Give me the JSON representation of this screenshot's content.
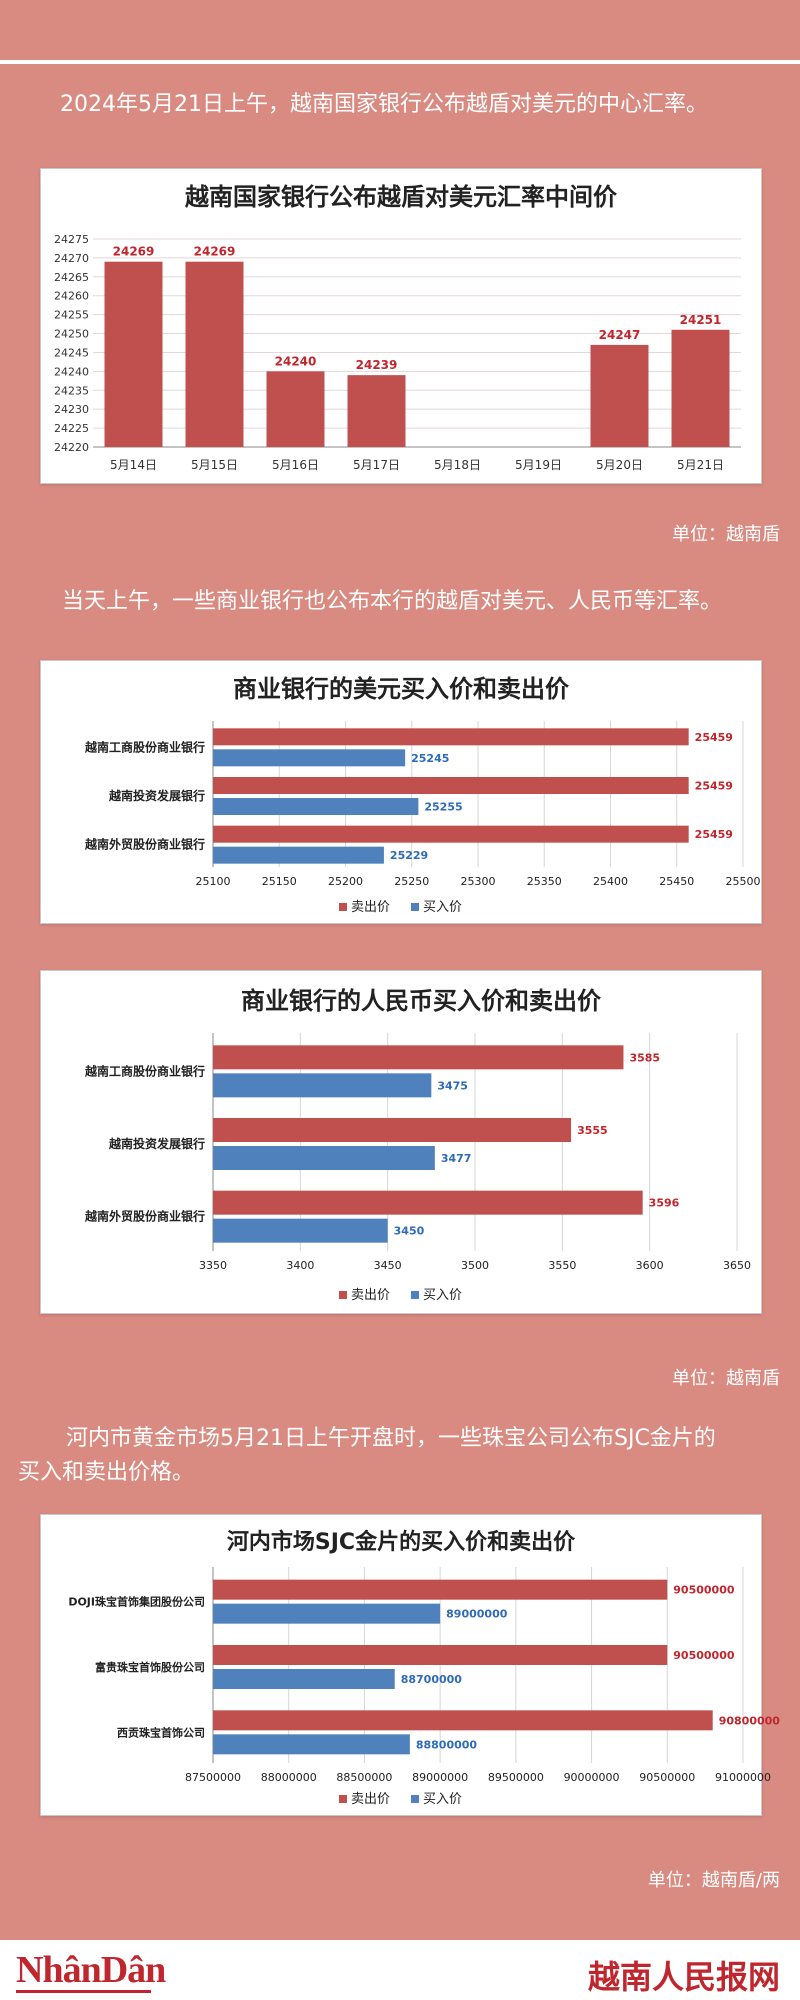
{
  "intro1": "2024年5月21日上午，越南国家银行公布越盾对美元的中心汇率。",
  "unit1": "单位：越南盾",
  "intro2": "当天上午，一些商业银行也公布本行的越盾对美元、人民币等汇率。",
  "unit2": "单位：越南盾",
  "intro3a": "河内市黄金市场5月21日上午开盘时，一些珠宝公司公布SJC金片的",
  "intro3b": "买入和卖出价格。",
  "unit3": "单位：越南盾/两",
  "footer": {
    "left_logo": "NhânDân",
    "right_logo": "越南人民报网"
  },
  "colors": {
    "sell": "#c0504d",
    "buy": "#4f81bd",
    "background": "#d98b82",
    "brand": "#c0262d"
  },
  "chart_data": [
    {
      "type": "bar",
      "title": "越南国家银行公布越盾对美元汇率中间价",
      "categories": [
        "5月14日",
        "5月15日",
        "5月16日",
        "5月17日",
        "5月18日",
        "5月19日",
        "5月20日",
        "5月21日"
      ],
      "values": [
        24269,
        24269,
        24240,
        24239,
        null,
        null,
        24247,
        24251
      ],
      "ylim": [
        24220,
        24275
      ],
      "yticks": [
        24220,
        24225,
        24230,
        24235,
        24240,
        24245,
        24250,
        24255,
        24260,
        24265,
        24270,
        24275
      ],
      "grid": true
    },
    {
      "type": "bar",
      "orientation": "horizontal",
      "title": "商业银行的美元买入价和卖出价",
      "categories": [
        "越南工商股份商业银行",
        "越南投资发展银行",
        "越南外贸股份商业银行"
      ],
      "series": [
        {
          "name": "卖出价",
          "values": [
            25459,
            25459,
            25459
          ]
        },
        {
          "name": "买入价",
          "values": [
            25245,
            25255,
            25229
          ]
        }
      ],
      "xlim": [
        25100,
        25500
      ],
      "xticks": [
        25100,
        25150,
        25200,
        25250,
        25300,
        25350,
        25400,
        25450,
        25500
      ],
      "legend": "bottom",
      "grid": true
    },
    {
      "type": "bar",
      "orientation": "horizontal",
      "title": "商业银行的人民币买入价和卖出价",
      "categories": [
        "越南工商股份商业银行",
        "越南投资发展银行",
        "越南外贸股份商业银行"
      ],
      "series": [
        {
          "name": "卖出价",
          "values": [
            3585,
            3555,
            3596
          ]
        },
        {
          "name": "买入价",
          "values": [
            3475,
            3477,
            3450
          ]
        }
      ],
      "xlim": [
        3350,
        3650
      ],
      "xticks": [
        3350,
        3400,
        3450,
        3500,
        3550,
        3600,
        3650
      ],
      "legend": "bottom",
      "grid": true
    },
    {
      "type": "bar",
      "orientation": "horizontal",
      "title": "河内市场SJC金片的买入价和卖出价",
      "categories": [
        "DOJI珠宝首饰集团股份公司",
        "富贵珠宝首饰股份公司",
        "西贡珠宝首饰公司"
      ],
      "series": [
        {
          "name": "卖出价",
          "values": [
            90500000,
            90500000,
            90800000
          ]
        },
        {
          "name": "买入价",
          "values": [
            89000000,
            88700000,
            88800000
          ]
        }
      ],
      "xlim": [
        87500000,
        91000000
      ],
      "xticks": [
        87500000,
        88000000,
        88500000,
        89000000,
        89500000,
        90000000,
        90500000,
        91000000
      ],
      "legend": "bottom",
      "grid": true
    }
  ]
}
